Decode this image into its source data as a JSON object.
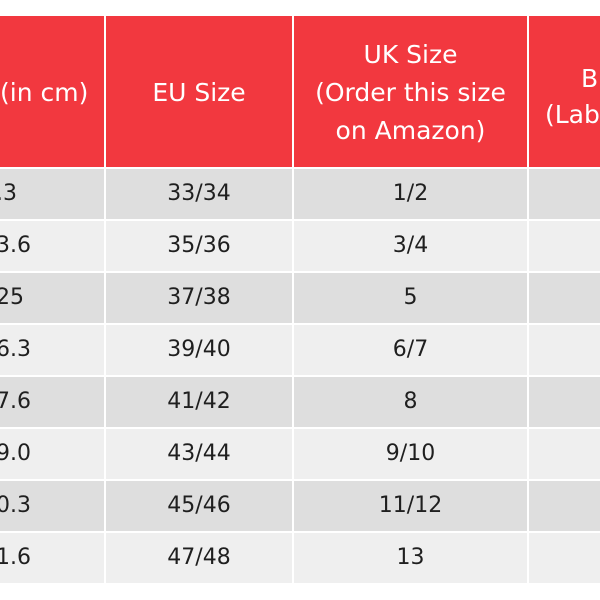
{
  "header": [
    [
      ")",
      "(in cm)"
    ],
    "EU Size",
    [
      "UK Size",
      "(Order this size",
      "on Amazon)"
    ],
    [
      "B",
      "(Lab"
    ]
  ],
  "rows": [
    [
      ".3",
      "33/34",
      "1/2"
    ],
    [
      "3.6",
      "35/36",
      "3/4"
    ],
    [
      "25",
      "37/38",
      "5"
    ],
    [
      "6.3",
      "39/40",
      "6/7"
    ],
    [
      "7.6",
      "41/42",
      "8"
    ],
    [
      "9.0",
      "43/44",
      "9/10"
    ],
    [
      "0.3",
      "45/46",
      "11/12"
    ],
    [
      "1.6",
      "47/48",
      "13"
    ]
  ]
}
